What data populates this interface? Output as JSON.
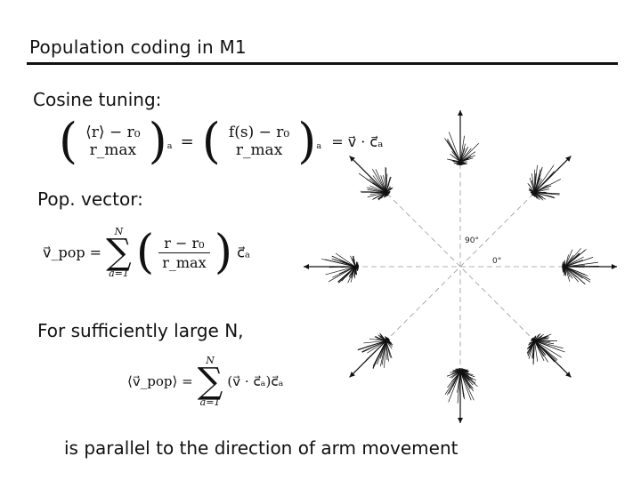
{
  "slide": {
    "title": "Population coding in M1",
    "cosine_label": "Cosine tuning:",
    "popvector_label": "Pop. vector:",
    "large_n_label": "For sufficiently large N,",
    "conclusion": "is parallel to the direction of arm movement"
  },
  "equations": {
    "eq1": {
      "num1": "⟨r⟩ − r₀",
      "den1": "r_max",
      "sub_a": "a",
      "num2": "f(s) − r₀",
      "den2": "r_max",
      "rhs": "= v⃗ · c⃗ₐ"
    },
    "eq2": {
      "lhs": "v⃗_pop =",
      "sum_top": "N",
      "sum_bottom": "a=1",
      "num": "r − r₀",
      "den": "r_max",
      "tail": "c⃗ₐ"
    },
    "eq3": {
      "lhs": "⟨v⃗_pop⟩ =",
      "sum_top": "N",
      "sum_bottom": "a=1",
      "body": "(v⃗ · c⃗ₐ)c⃗ₐ"
    }
  },
  "figure": {
    "label_90": "90°",
    "label_0": "0°",
    "ink_color": "#111111",
    "dash_color": "#9a9a9a"
  }
}
